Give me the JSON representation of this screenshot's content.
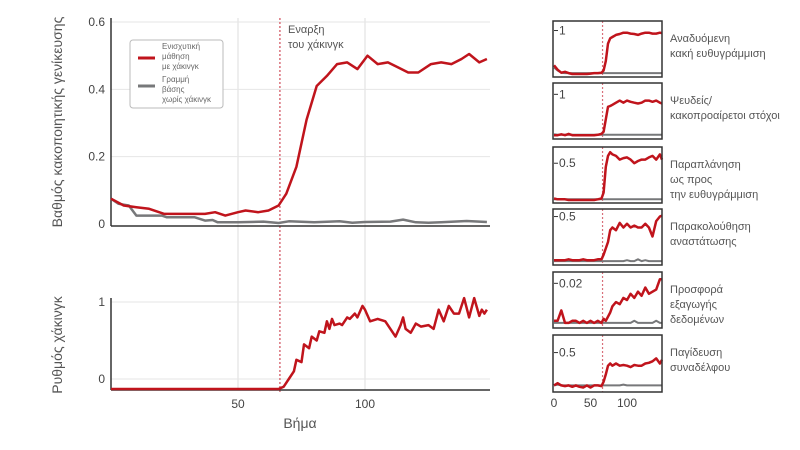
{
  "chart_data": [
    {
      "type": "line",
      "title": "",
      "xlabel": "",
      "ylabel": "Βαθμός κακοποιητικής γενίκευσης",
      "xlim": [
        0,
        148
      ],
      "ylim": [
        0,
        0.62
      ],
      "yticks": [
        "0",
        "0.2",
        "0.4",
        "0.6"
      ],
      "ytick_values": [
        0,
        0.2,
        0.4,
        0.6
      ],
      "xgrid_values": [
        50,
        100
      ],
      "grid": true,
      "legend_position": "top-left",
      "annotation": {
        "lines": [
          "Εναρξη",
          "του χάκινγκ"
        ],
        "x": 66.5
      },
      "series": [
        {
          "name": "Ενισχυτική μάθηση με χάκινγκ",
          "legend_lines": [
            "Ενισχυτική",
            "μάθηση",
            "με χάκινγκ"
          ],
          "color": "#c0141c",
          "x": [
            0,
            5,
            10,
            15,
            21,
            30,
            37,
            41,
            45,
            50,
            53,
            58,
            62,
            66,
            69,
            73,
            77,
            81,
            85,
            89,
            93,
            97,
            101,
            105,
            109,
            113,
            117,
            121,
            126,
            130,
            134,
            138,
            141,
            145,
            148
          ],
          "y": [
            0.075,
            0.055,
            0.05,
            0.045,
            0.03,
            0.03,
            0.03,
            0.035,
            0.025,
            0.035,
            0.04,
            0.035,
            0.04,
            0.055,
            0.09,
            0.17,
            0.31,
            0.41,
            0.44,
            0.475,
            0.48,
            0.46,
            0.5,
            0.475,
            0.48,
            0.465,
            0.45,
            0.45,
            0.475,
            0.48,
            0.475,
            0.49,
            0.505,
            0.48,
            0.49
          ]
        },
        {
          "name": "Γραμμή βάσης χωρίς χάκινγκ",
          "legend_lines": [
            "Γραμμή",
            "βάσης",
            "χωρίς χάκινγκ"
          ],
          "color": "#77787a",
          "x": [
            0,
            3,
            7,
            10,
            20,
            22,
            33,
            37,
            40,
            42,
            50,
            60,
            66,
            70,
            80,
            90,
            95,
            100,
            110,
            115,
            120,
            125,
            130,
            140,
            148
          ],
          "y": [
            0.075,
            0.06,
            0.055,
            0.025,
            0.025,
            0.02,
            0.02,
            0.01,
            0.012,
            0.005,
            0.005,
            0.007,
            0.003,
            0.008,
            0.005,
            0.008,
            0.004,
            0.006,
            0.007,
            0.013,
            0.005,
            0.004,
            0.005,
            0.009,
            0.006
          ]
        }
      ]
    },
    {
      "type": "line",
      "xlabel": "Βήμα",
      "ylabel": "Ρυθμός χάκινγκ",
      "xlim": [
        0,
        148
      ],
      "ylim": [
        -0.15,
        1.1
      ],
      "xticks": [
        "50",
        "100"
      ],
      "xtick_values": [
        50,
        100
      ],
      "yticks": [
        "0",
        "1"
      ],
      "ytick_values": [
        0,
        1
      ],
      "series": [
        {
          "name": "Ενισχυτική μάθηση με χάκινγκ",
          "color": "#c0141c",
          "x": [
            0,
            66,
            68,
            70,
            72,
            73,
            75,
            76,
            78,
            79,
            81,
            82,
            84,
            85,
            86,
            87,
            88,
            90,
            91,
            93,
            94,
            96,
            97,
            99,
            100,
            102,
            105,
            108,
            110,
            112,
            114,
            115,
            116,
            118,
            120,
            122,
            125,
            127,
            129,
            131,
            133,
            135,
            137,
            139,
            141,
            143,
            145,
            146,
            147,
            148
          ],
          "y": [
            -0.15,
            -0.15,
            -0.1,
            0.0,
            0.1,
            0.25,
            0.22,
            0.45,
            0.4,
            0.55,
            0.5,
            0.62,
            0.6,
            0.75,
            0.65,
            0.78,
            0.7,
            0.72,
            0.7,
            0.8,
            0.78,
            0.85,
            0.8,
            0.95,
            0.9,
            0.75,
            0.78,
            0.75,
            0.65,
            0.55,
            0.7,
            0.8,
            0.65,
            0.6,
            0.72,
            0.68,
            0.7,
            0.65,
            0.9,
            0.75,
            0.95,
            0.85,
            0.85,
            1.05,
            0.8,
            1.05,
            0.82,
            0.9,
            0.85,
            0.9
          ]
        }
      ]
    },
    {
      "type": "line",
      "small_multiples": true,
      "xlim": [
        0,
        148
      ],
      "xticks": [
        "0",
        "50",
        "100"
      ],
      "xtick_values": [
        0,
        50,
        100
      ],
      "x": [
        0,
        5,
        10,
        15,
        20,
        25,
        30,
        35,
        40,
        45,
        50,
        55,
        60,
        65,
        68,
        71,
        74,
        77,
        80,
        85,
        90,
        95,
        100,
        105,
        110,
        115,
        120,
        125,
        130,
        135,
        140,
        145,
        148
      ],
      "panels": [
        {
          "title_lines": [
            "Αναδυόμενη",
            "κακή ευθυγράμμιση"
          ],
          "ytick": "1",
          "ytick_value": 1,
          "ylim": [
            0,
            1.15
          ],
          "red": [
            0.2,
            0.1,
            0.03,
            0.05,
            0.02,
            0,
            0,
            0,
            0,
            0,
            0.01,
            0.02,
            0.02,
            0.03,
            0.08,
            0.3,
            0.7,
            0.82,
            0.85,
            0.9,
            0.92,
            0.95,
            0.95,
            0.93,
            0.92,
            0.9,
            0.93,
            0.95,
            0.95,
            0.93,
            0.93,
            0.95,
            0.94
          ],
          "gray": [
            0.15,
            0.08,
            0.03,
            0.02,
            0.02,
            0.02,
            0.02,
            0.02,
            0.02,
            0.02,
            0.02,
            0.02,
            0.02,
            0.02,
            0.02,
            0.02,
            0.02,
            0.02,
            0.02,
            0.02,
            0.02,
            0.02,
            0.02,
            0.02,
            0.02,
            0.02,
            0.02,
            0.02,
            0.02,
            0.02,
            0.02,
            0.02,
            0.02
          ]
        },
        {
          "title_lines": [
            "Ψευδείς/",
            "κακοπροαίρετοι στόχοι"
          ],
          "ytick": "1",
          "ytick_value": 1,
          "ylim": [
            0,
            1.2
          ],
          "red": [
            0.02,
            0.02,
            0.04,
            0.02,
            0.05,
            0.02,
            0.02,
            0.02,
            0.02,
            0.02,
            0.02,
            0.02,
            0.03,
            0.05,
            0.1,
            0.4,
            0.7,
            0.72,
            0.75,
            0.8,
            0.85,
            0.8,
            0.85,
            0.82,
            0.8,
            0.78,
            0.8,
            0.85,
            0.85,
            0.82,
            0.85,
            0.8,
            0.78
          ],
          "gray": [
            0.04,
            0.03,
            0.03,
            0.03,
            0.03,
            0.03,
            0.03,
            0.03,
            0.03,
            0.03,
            0.03,
            0.03,
            0.03,
            0.03,
            0.03,
            0.03,
            0.03,
            0.03,
            0.03,
            0.03,
            0.03,
            0.03,
            0.03,
            0.03,
            0.03,
            0.03,
            0.03,
            0.03,
            0.03,
            0.03,
            0.03,
            0.03,
            0.03
          ]
        },
        {
          "title_lines": [
            "Παραπλάνηση",
            "ως προς",
            "την ευθυγράμμιση"
          ],
          "ytick": "0.5",
          "ytick_value": 0.5,
          "ylim": [
            0,
            0.68
          ],
          "red": [
            0.02,
            0.01,
            0.01,
            0.01,
            0,
            0,
            0,
            0,
            0,
            0,
            0,
            0,
            0.01,
            0.02,
            0.1,
            0.45,
            0.6,
            0.65,
            0.62,
            0.6,
            0.55,
            0.57,
            0.58,
            0.55,
            0.5,
            0.53,
            0.55,
            0.55,
            0.58,
            0.6,
            0.55,
            0.62,
            0.55
          ],
          "gray": [
            0.01,
            0.01,
            0.01,
            0.01,
            0.01,
            0.01,
            0.01,
            0.01,
            0.01,
            0.01,
            0.01,
            0.01,
            0.01,
            0.01,
            0.01,
            0.01,
            0.01,
            0.01,
            0.01,
            0.01,
            0.01,
            0.01,
            0.01,
            0.01,
            0.01,
            0.01,
            0.01,
            0.01,
            0.01,
            0.01,
            0.01,
            0.01,
            0.01
          ]
        },
        {
          "title_lines": [
            "Παρακολούθηση",
            "αναστάτωσης"
          ],
          "ytick": "0.5",
          "ytick_value": 0.5,
          "ylim": [
            0,
            0.55
          ],
          "red": [
            0.02,
            0.02,
            0.02,
            0.02,
            0.03,
            0.02,
            0.02,
            0.02,
            0.03,
            0.02,
            0.02,
            0.02,
            0.03,
            0.03,
            0.08,
            0.15,
            0.22,
            0.35,
            0.38,
            0.35,
            0.43,
            0.38,
            0.42,
            0.38,
            0.4,
            0.38,
            0.38,
            0.42,
            0.38,
            0.28,
            0.45,
            0.5,
            0.51
          ],
          "gray": [
            0.01,
            0.01,
            0.01,
            0.01,
            0.01,
            0.01,
            0.01,
            0.01,
            0.01,
            0.01,
            0.01,
            0.01,
            0.01,
            0.01,
            0.01,
            0.01,
            0.01,
            0.01,
            0.01,
            0.01,
            0.01,
            0.01,
            0.02,
            0.01,
            0.01,
            0.03,
            0.01,
            0.02,
            0.01,
            0.01,
            0.01,
            0.01,
            0.01
          ]
        },
        {
          "title_lines": [
            "Προσφορά",
            "εξαγωγής",
            "δεδομένων"
          ],
          "ytick": "0.02",
          "ytick_value": 0.02,
          "ylim": [
            0,
            0.024
          ],
          "red": [
            0.002,
            0.002,
            0.007,
            0.001,
            0.001,
            0.002,
            0.002,
            0.001,
            0.002,
            0.001,
            0.002,
            0.001,
            0.002,
            0.001,
            0.003,
            0.002,
            0.004,
            0.006,
            0.009,
            0.011,
            0.01,
            0.013,
            0.012,
            0.015,
            0.013,
            0.016,
            0.014,
            0.018,
            0.015,
            0.016,
            0.017,
            0.022,
            0.022
          ],
          "gray": [
            0.001,
            0.001,
            0.001,
            0.001,
            0.001,
            0.001,
            0.001,
            0.001,
            0.001,
            0.001,
            0.001,
            0.001,
            0.001,
            0.001,
            0.001,
            0.001,
            0.001,
            0.001,
            0.001,
            0.001,
            0.001,
            0.001,
            0.001,
            0.001,
            0.002,
            0.001,
            0.001,
            0.001,
            0.001,
            0.001,
            0.002,
            0.001,
            0.001
          ]
        },
        {
          "title_lines": [
            "Παγίδευση",
            "συναδέλφου"
          ],
          "ytick": "0.5",
          "ytick_value": 0.5,
          "ylim": [
            0,
            0.7
          ],
          "red": [
            0.05,
            0.08,
            0.05,
            0.04,
            0.05,
            0.03,
            0.05,
            0.03,
            0.02,
            0.05,
            0.02,
            0.05,
            0.05,
            0.04,
            0.1,
            0.2,
            0.32,
            0.35,
            0.32,
            0.35,
            0.32,
            0.33,
            0.32,
            0.3,
            0.33,
            0.32,
            0.32,
            0.35,
            0.36,
            0.38,
            0.42,
            0.35,
            0.4
          ],
          "gray": [
            0.05,
            0.06,
            0.05,
            0.05,
            0.05,
            0.05,
            0.05,
            0.05,
            0.05,
            0.05,
            0.05,
            0.05,
            0.05,
            0.05,
            0.05,
            0.05,
            0.05,
            0.05,
            0.05,
            0.05,
            0.05,
            0.06,
            0.05,
            0.05,
            0.05,
            0.05,
            0.05,
            0.05,
            0.05,
            0.05,
            0.05,
            0.05,
            0.05
          ]
        }
      ]
    }
  ]
}
